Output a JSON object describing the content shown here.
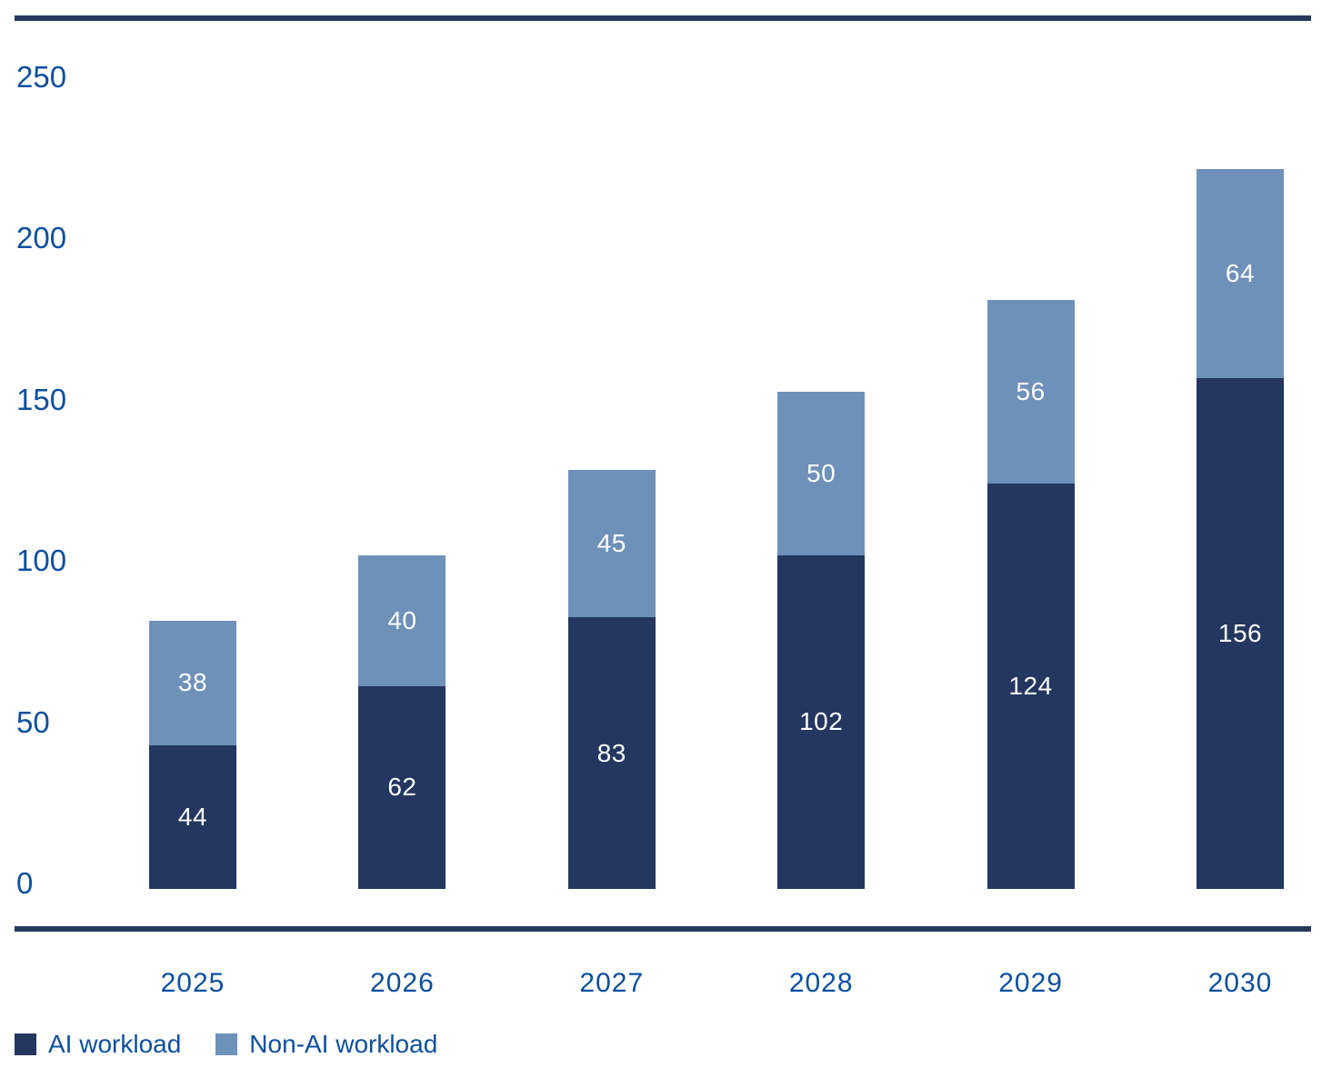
{
  "chart_data": {
    "type": "bar",
    "stacked": true,
    "categories": [
      "2025",
      "2026",
      "2027",
      "2028",
      "2029",
      "2030"
    ],
    "series": [
      {
        "name": "AI workload",
        "color": "#233760",
        "values": [
          44,
          62,
          83,
          102,
          124,
          156
        ]
      },
      {
        "name": "Non-AI workload",
        "color": "#6e91ba",
        "values": [
          38,
          40,
          45,
          50,
          56,
          64
        ]
      }
    ],
    "ylim": [
      0,
      250
    ],
    "yticks": [
      0,
      50,
      100,
      150,
      200,
      250
    ],
    "grid": false,
    "legend_position": "bottom-left",
    "value_labels": "inside-center",
    "value_label_color": "#ffffff"
  },
  "legend": {
    "items": [
      {
        "label": "AI workload",
        "color": "#233760"
      },
      {
        "label": "Non-AI workload",
        "color": "#6e91ba"
      }
    ]
  },
  "colors": {
    "axis_text": "#0d4fa0",
    "border_rule": "#25395c",
    "background": "#ffffff"
  }
}
